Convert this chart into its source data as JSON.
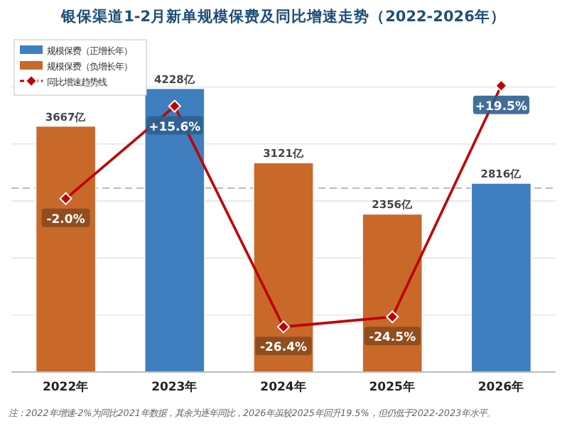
{
  "chart_data": {
    "type": "bar",
    "title": "银保渠道1-2月新单规模保费及同比增速走势（2022-2026年）",
    "categories": [
      "2022年",
      "2023年",
      "2024年",
      "2025年",
      "2026年"
    ],
    "stacked": true,
    "series": [
      {
        "name": "规模保费（正增长年）",
        "color": "#3f7fbf",
        "values": [
          null,
          4228,
          null,
          null,
          2816
        ],
        "value_labels": [
          null,
          "4228亿",
          null,
          null,
          "2816亿"
        ]
      },
      {
        "name": "规模保费（负增长年）",
        "color": "#c8692a",
        "values": [
          3667,
          null,
          3121,
          2356,
          null
        ],
        "value_labels": [
          "3667亿",
          null,
          "3121亿",
          "2356亿",
          null
        ]
      },
      {
        "name": "同比增速趋势线",
        "type": "line",
        "axis": "y2",
        "color": "#c00000",
        "marker": "diamond",
        "values": [
          -2.0,
          15.6,
          -26.4,
          -24.5,
          19.5
        ],
        "value_labels": [
          "-2.0%",
          "+15.6%",
          "-26.4%",
          "-24.5%",
          "+19.5%"
        ]
      }
    ],
    "ylim": [
      0,
      4700
    ],
    "y2lim": [
      -35,
      25
    ],
    "yticks": [
      {
        "value": 850,
        "label": null
      },
      {
        "value": 1700,
        "label": null
      },
      {
        "value": 2550,
        "label": null
      },
      {
        "value": 3400,
        "label": null
      },
      {
        "value": 4250,
        "label": null
      }
    ],
    "grid": "y",
    "tick_labels": "x",
    "legend": "top left",
    "ref_lines": [
      {
        "axis": "y2",
        "value": 0,
        "color": "#bbbbbb",
        "line_style": "dashed"
      }
    ],
    "annotations": [
      "注：2022年增速-2%为同比2021年数据，其余为逐年同比，2026年虽较2025年回升19.5%，但仍低于2022-2023年水平。"
    ]
  }
}
